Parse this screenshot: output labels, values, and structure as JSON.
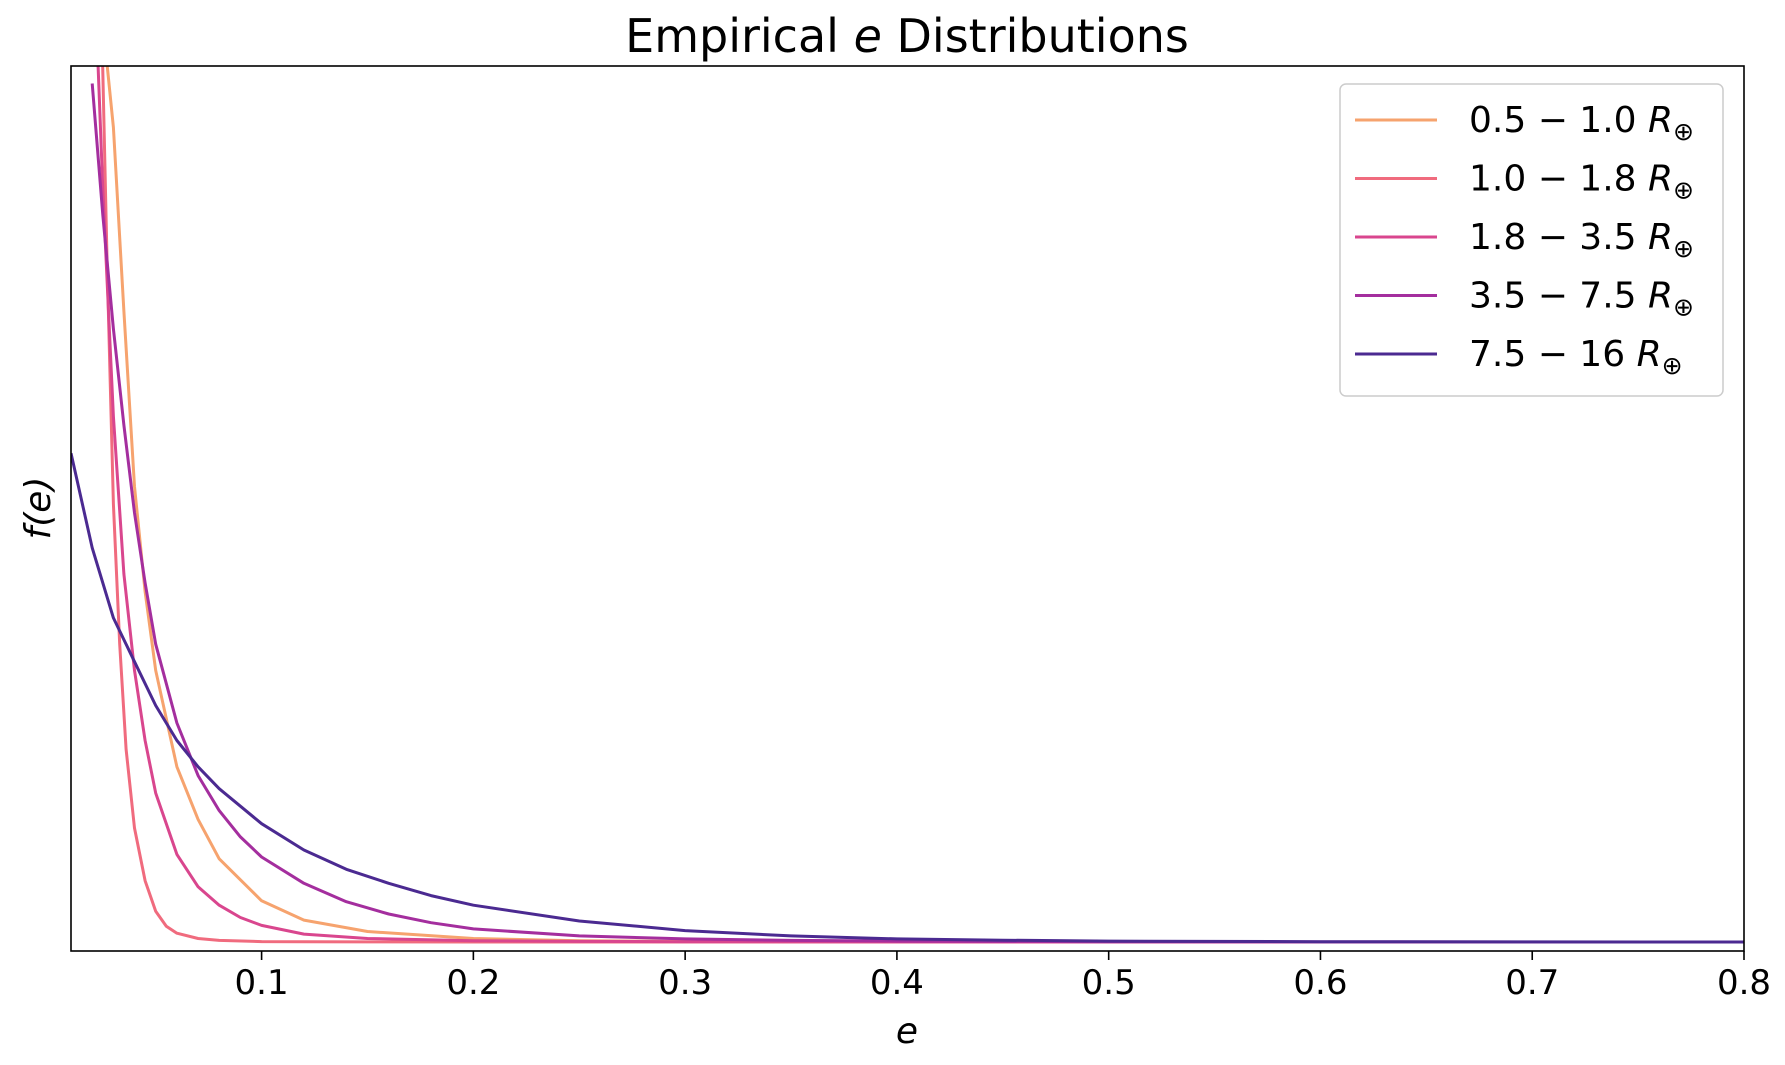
{
  "chart_data": {
    "type": "line",
    "title_parts": [
      "Empirical ",
      "e",
      " Distributions"
    ],
    "xlabel": "e",
    "ylabel": "f(e)",
    "xlim": [
      0.01,
      0.8
    ],
    "ylim": [
      0,
      1
    ],
    "y_ticks_shown": false,
    "x_ticks": [
      0.1,
      0.2,
      0.3,
      0.4,
      0.5,
      0.6,
      0.7,
      0.8
    ],
    "x_tick_labels": [
      "0.1",
      "0.2",
      "0.3",
      "0.4",
      "0.5",
      "0.6",
      "0.7",
      "0.8"
    ],
    "legend_placement": "top-right",
    "note": "y axis has no tick labels; series y-values are relative f(e) on a 0-1 scale of the visible axis",
    "series": [
      {
        "name": "0.5 − 1.0 R⊕",
        "range": "0.5 − 1.0",
        "unit": "R",
        "unit_sub": "⊕",
        "color": "#f6a36e",
        "x": [
          0.025,
          0.03,
          0.035,
          0.04,
          0.045,
          0.05,
          0.06,
          0.07,
          0.08,
          0.1,
          0.12,
          0.15,
          0.2,
          0.25,
          0.3,
          0.4,
          0.5,
          0.6,
          0.7,
          0.8
        ],
        "y": [
          1.05,
          0.93,
          0.72,
          0.52,
          0.4,
          0.31,
          0.2,
          0.14,
          0.095,
          0.047,
          0.025,
          0.012,
          0.004,
          0.0015,
          0.0007,
          0.0002,
          0.0001,
          0,
          0,
          0
        ]
      },
      {
        "name": "1.0 − 1.8 R⊕",
        "range": "1.0 − 1.8",
        "unit": "R",
        "unit_sub": "⊕",
        "color": "#f06b7e",
        "x": [
          0.0245,
          0.027,
          0.03,
          0.033,
          0.036,
          0.04,
          0.045,
          0.05,
          0.055,
          0.06,
          0.07,
          0.08,
          0.1,
          0.12,
          0.15,
          0.2,
          0.3,
          0.4,
          0.5,
          0.6,
          0.7,
          0.8
        ],
        "y": [
          1.05,
          0.78,
          0.5,
          0.34,
          0.22,
          0.13,
          0.07,
          0.035,
          0.018,
          0.01,
          0.004,
          0.0018,
          0.0005,
          0.0002,
          0.0001,
          0,
          0,
          0,
          0,
          0,
          0,
          0
        ]
      },
      {
        "name": "1.8 − 3.5 R⊕",
        "range": "1.8 − 3.5",
        "unit": "R",
        "unit_sub": "⊕",
        "color": "#d9468e",
        "x": [
          0.022,
          0.025,
          0.03,
          0.035,
          0.04,
          0.045,
          0.05,
          0.06,
          0.07,
          0.08,
          0.09,
          0.1,
          0.12,
          0.15,
          0.2,
          0.25,
          0.3,
          0.4,
          0.5,
          0.6,
          0.7,
          0.8
        ],
        "y": [
          1.05,
          0.86,
          0.6,
          0.42,
          0.31,
          0.23,
          0.17,
          0.1,
          0.063,
          0.042,
          0.028,
          0.019,
          0.009,
          0.004,
          0.0015,
          0.0007,
          0.0003,
          0.0001,
          0,
          0,
          0,
          0
        ]
      },
      {
        "name": "3.5 − 7.5 R⊕",
        "range": "3.5 − 7.5",
        "unit": "R",
        "unit_sub": "⊕",
        "color": "#a42e9e",
        "x": [
          0.02,
          0.025,
          0.03,
          0.035,
          0.04,
          0.045,
          0.05,
          0.06,
          0.07,
          0.08,
          0.09,
          0.1,
          0.12,
          0.14,
          0.16,
          0.18,
          0.2,
          0.25,
          0.3,
          0.35,
          0.4,
          0.5,
          0.6,
          0.7,
          0.8
        ],
        "y": [
          0.98,
          0.83,
          0.7,
          0.59,
          0.49,
          0.41,
          0.34,
          0.25,
          0.19,
          0.15,
          0.12,
          0.097,
          0.067,
          0.046,
          0.032,
          0.022,
          0.015,
          0.007,
          0.0035,
          0.0018,
          0.001,
          0.0003,
          0.0001,
          0,
          0
        ]
      },
      {
        "name": "7.5 − 16 R⊕",
        "range": "7.5 − 16",
        "unit": "R",
        "unit_sub": "⊕",
        "color": "#4b2a91",
        "x": [
          0.01,
          0.02,
          0.03,
          0.04,
          0.05,
          0.06,
          0.07,
          0.08,
          0.09,
          0.1,
          0.12,
          0.14,
          0.16,
          0.18,
          0.2,
          0.25,
          0.3,
          0.35,
          0.4,
          0.45,
          0.5,
          0.6,
          0.7,
          0.8
        ],
        "y": [
          0.558,
          0.45,
          0.37,
          0.32,
          0.27,
          0.23,
          0.2,
          0.175,
          0.155,
          0.135,
          0.105,
          0.083,
          0.067,
          0.053,
          0.042,
          0.024,
          0.013,
          0.007,
          0.0035,
          0.002,
          0.001,
          0.0003,
          0.0001,
          0
        ]
      }
    ]
  }
}
